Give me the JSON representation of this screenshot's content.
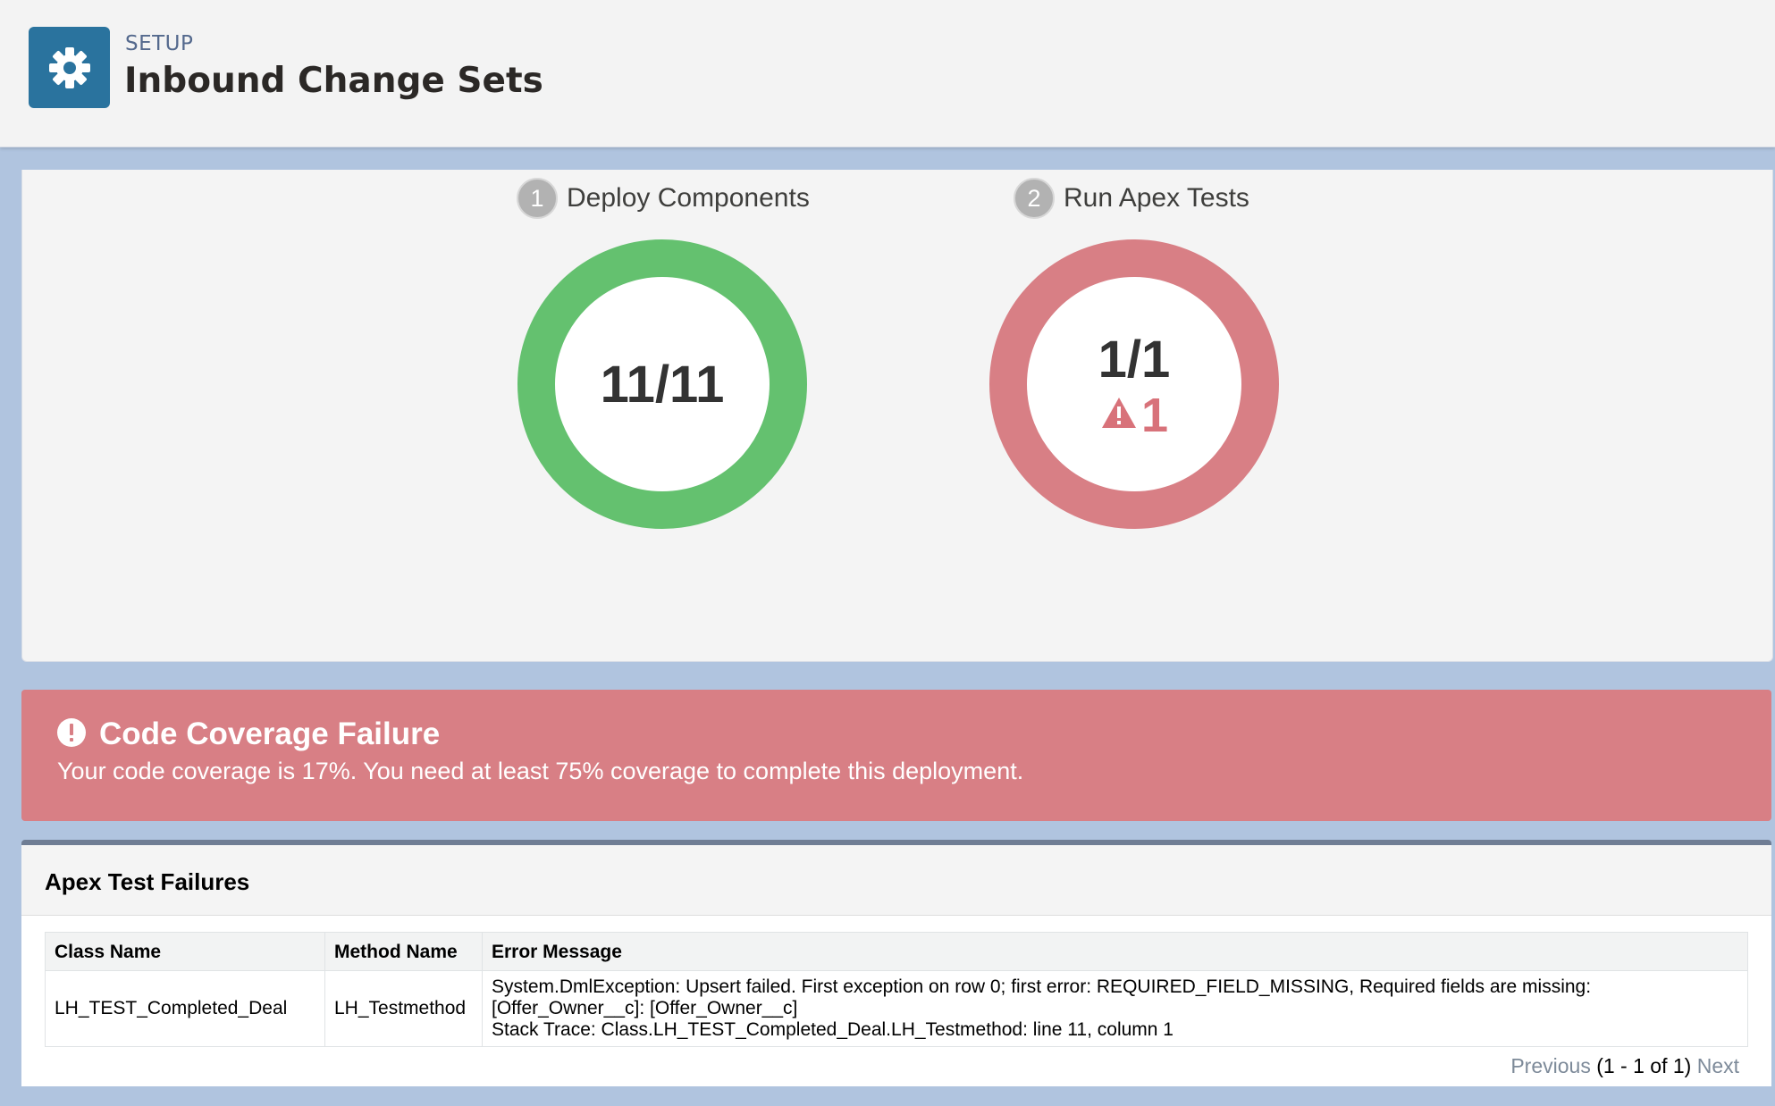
{
  "header": {
    "eyebrow": "SETUP",
    "title": "Inbound Change Sets",
    "icon": "gear-icon"
  },
  "steps": [
    {
      "number": "1",
      "label": "Deploy Components",
      "value": "11/11",
      "ring_color": "#64c16f"
    },
    {
      "number": "2",
      "label": "Run Apex Tests",
      "value": "1/1",
      "warning_count": "1",
      "warning_icon": "warning-icon",
      "ring_color": "#d87f85"
    }
  ],
  "failure": {
    "icon": "error-icon",
    "title": "Code Coverage Failure",
    "message": "Your code coverage is 17%. You need at least 75% coverage to complete this deployment.",
    "color": "#d87f85"
  },
  "failures_panel": {
    "title": "Apex Test Failures",
    "columns": [
      "Class Name",
      "Method Name",
      "Error Message"
    ],
    "rows": [
      {
        "class_name": "LH_TEST_Completed_Deal",
        "method_name": "LH_Testmethod",
        "error_lines": [
          "System.DmlException: Upsert failed. First exception on row 0; first error: REQUIRED_FIELD_MISSING, Required fields are missing:",
          "[Offer_Owner__c]: [Offer_Owner__c]",
          "Stack Trace: Class.LH_TEST_Completed_Deal.LH_Testmethod: line 11, column 1"
        ]
      }
    ],
    "pager": {
      "previous": "Previous",
      "range": "(1 - 1 of 1)",
      "next": "Next"
    }
  }
}
